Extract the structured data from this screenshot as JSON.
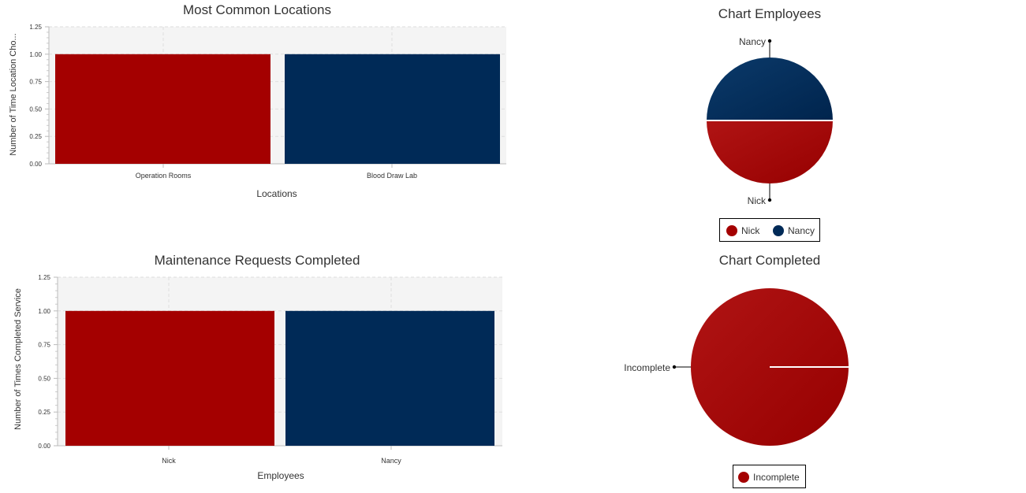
{
  "colors": {
    "red": "#a40000",
    "navy": "#002a57",
    "plot_bg": "#f4f4f4",
    "grid": "#dedede"
  },
  "chart_data": [
    {
      "type": "bar",
      "title": "Most Common Locations",
      "xlabel": "Locations",
      "ylabel": "Number of Time Location Cho...",
      "categories": [
        "Operation Rooms",
        "Blood Draw Lab"
      ],
      "values": [
        1,
        1
      ],
      "bar_colors": [
        "#a40000",
        "#002a57"
      ],
      "ylim": [
        0,
        1.25
      ],
      "yticks": [
        "0.00",
        "0.25",
        "0.50",
        "0.75",
        "1.00",
        "1.25"
      ],
      "grid": true
    },
    {
      "type": "pie",
      "title": "Chart Employees",
      "slices": [
        {
          "label": "Nick",
          "value": 1,
          "color": "#a40000"
        },
        {
          "label": "Nancy",
          "value": 1,
          "color": "#002a57"
        }
      ],
      "legend": [
        "Nick",
        "Nancy"
      ],
      "legend_position": "bottom"
    },
    {
      "type": "bar",
      "title": "Maintenance Requests Completed",
      "xlabel": "Employees",
      "ylabel": "Number of Times Completed Service",
      "categories": [
        "Nick",
        "Nancy"
      ],
      "values": [
        1,
        1
      ],
      "bar_colors": [
        "#a40000",
        "#002a57"
      ],
      "ylim": [
        0,
        1.25
      ],
      "yticks": [
        "0.00",
        "0.25",
        "0.50",
        "0.75",
        "1.00",
        "1.25"
      ],
      "grid": true
    },
    {
      "type": "pie",
      "title": "Chart Completed",
      "slices": [
        {
          "label": "Incomplete",
          "value": 1,
          "color": "#a40000"
        }
      ],
      "legend": [
        "Incomplete"
      ],
      "legend_position": "bottom"
    }
  ]
}
